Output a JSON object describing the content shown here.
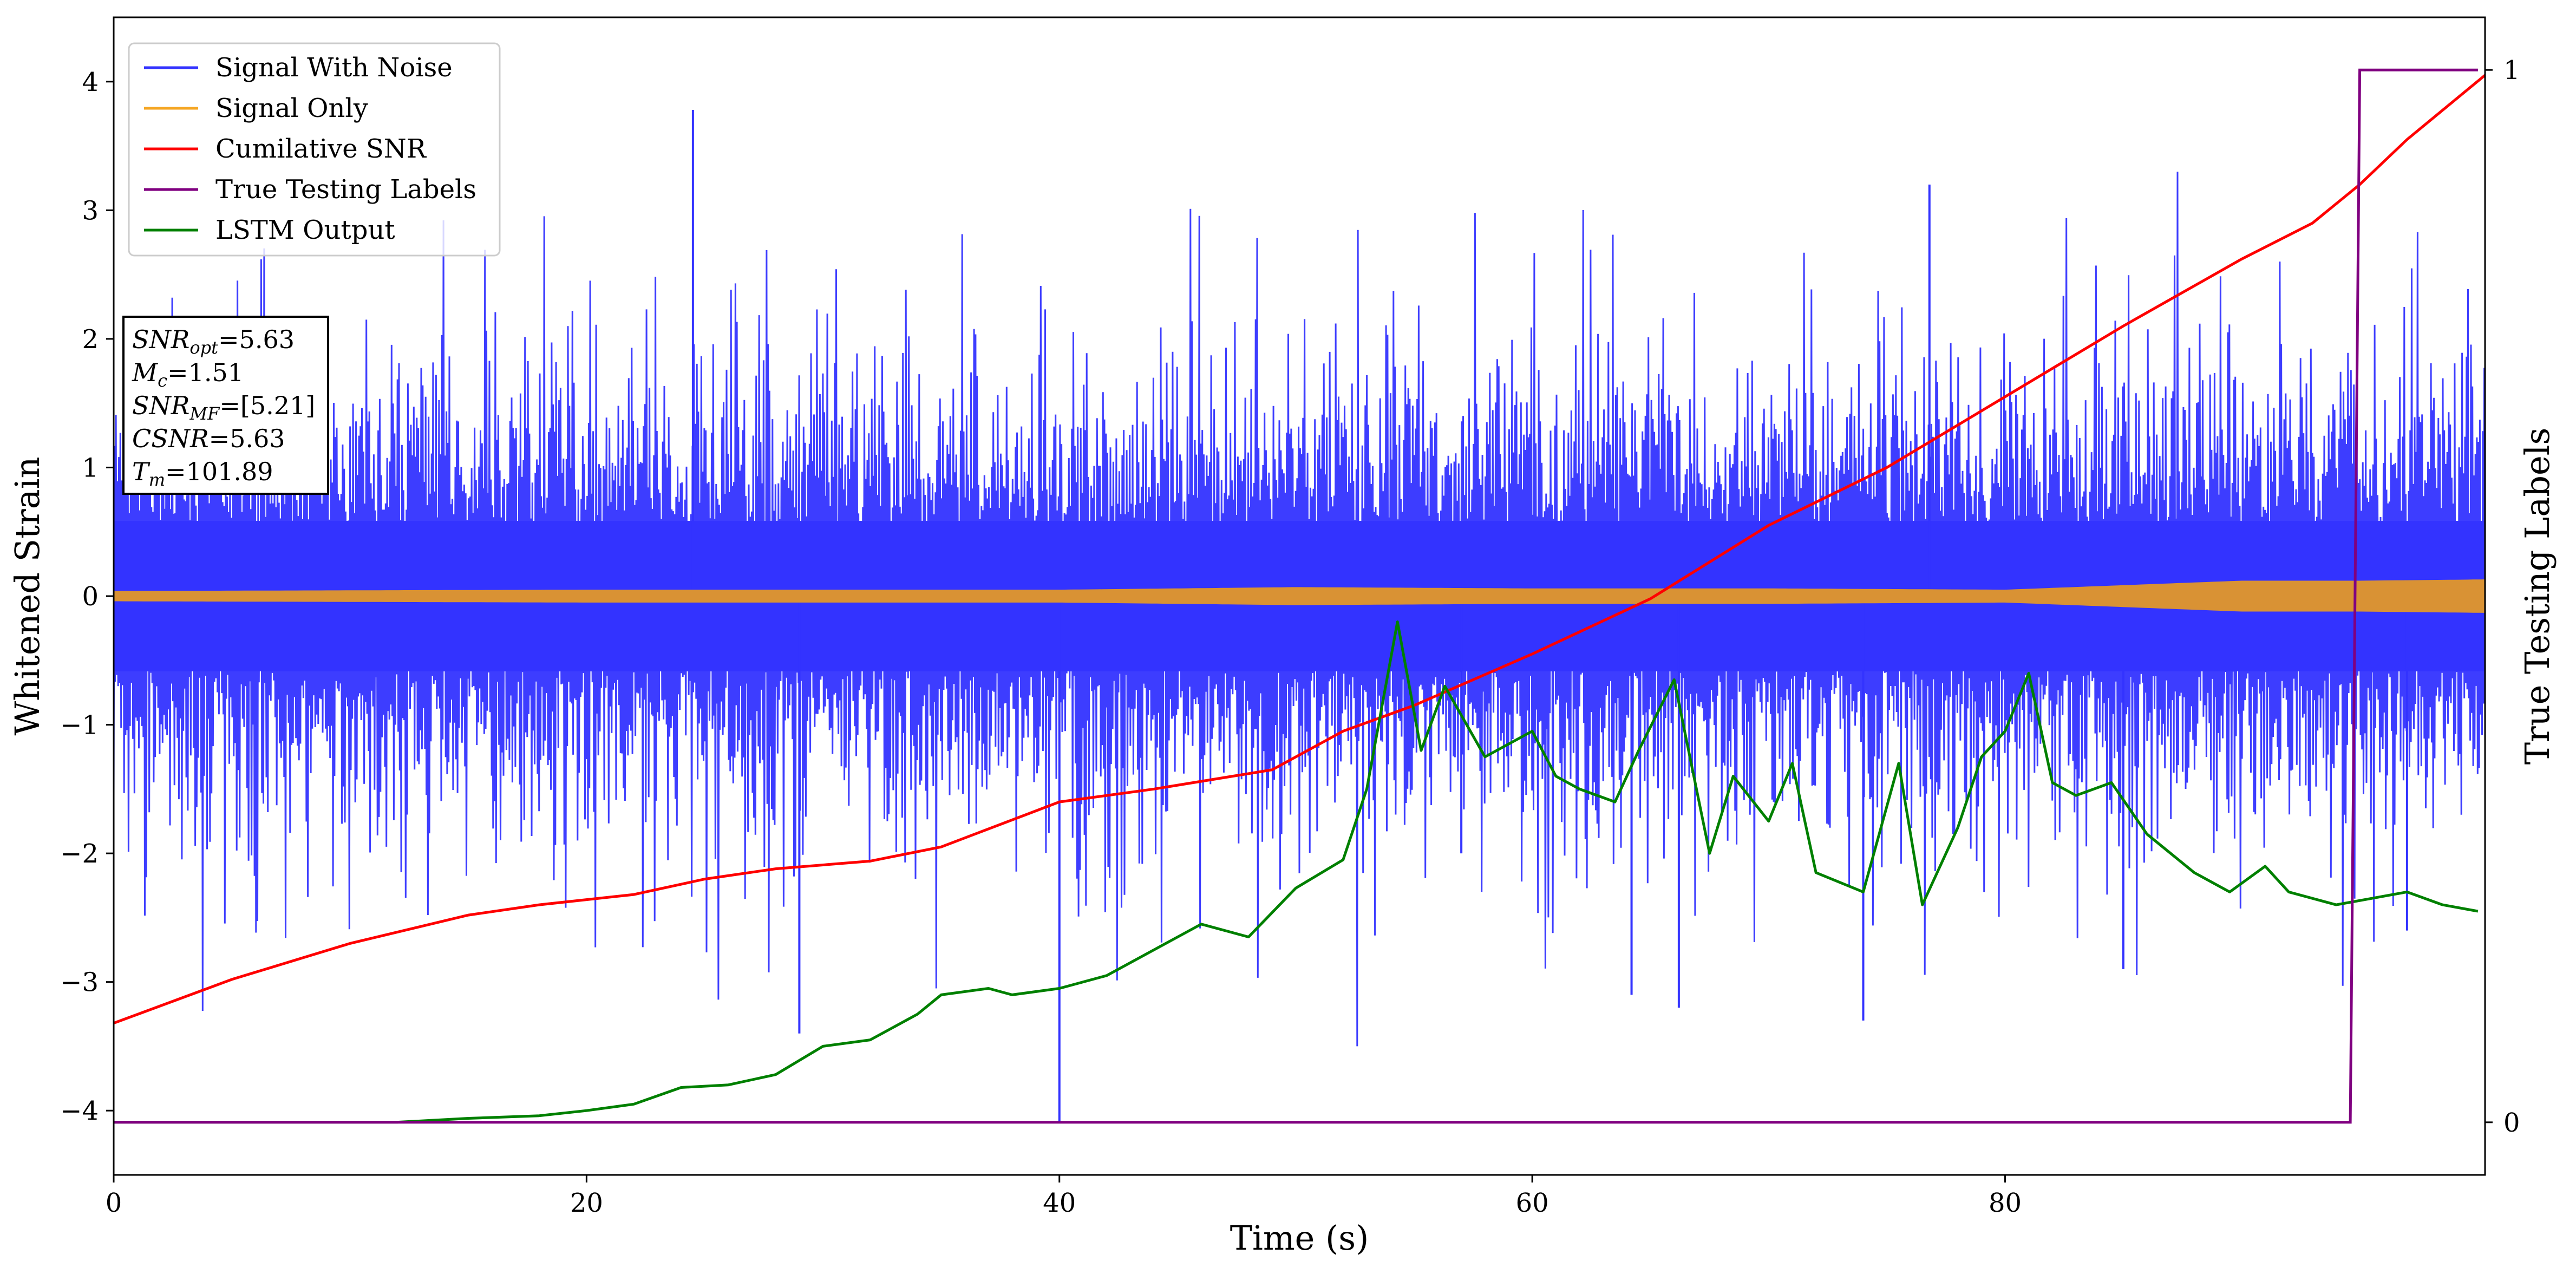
{
  "chart_data": {
    "type": "line",
    "xlabel": "Time (s)",
    "ylabel": "Whitened Strain",
    "y2label": "True Testing Labels",
    "xlim": [
      0,
      100.3
    ],
    "ylim": [
      -4.5,
      4.5
    ],
    "y2lim": [
      -0.05,
      1.05
    ],
    "xticks": [
      0,
      20,
      40,
      60,
      80
    ],
    "yticks": [
      -4,
      -3,
      -2,
      -1,
      0,
      1,
      2,
      3,
      4
    ],
    "y2ticks": [
      0,
      1
    ],
    "grid": false,
    "legend_position": "top-left",
    "colors": {
      "signal_with_noise": "#3333ff",
      "signal_only": "#f5a623",
      "signal_only_overlap": "#d99234",
      "cumulative_snr": "#ff0000",
      "true_labels": "#800080",
      "lstm_output": "#008000"
    },
    "series": [
      {
        "name": "Signal With Noise",
        "key": "signal_with_noise",
        "axis": "left",
        "noise_envelope": {
          "core_amplitude": 1.3,
          "max_amplitude": 3.8,
          "min_amplitude": -4.1,
          "x_range": [
            0,
            100.3
          ]
        }
      },
      {
        "name": "Signal Only",
        "key": "signal_only",
        "axis": "left",
        "envelope": {
          "x": [
            0,
            20,
            40,
            50,
            60,
            70,
            80,
            90,
            95,
            100.3
          ],
          "half_width": [
            0.04,
            0.05,
            0.05,
            0.07,
            0.06,
            0.06,
            0.05,
            0.12,
            0.12,
            0.13
          ]
        }
      },
      {
        "name": "Cumilative SNR",
        "key": "cumulative_snr",
        "axis": "left",
        "x": [
          0,
          5,
          10,
          15,
          18,
          22,
          25,
          28,
          32,
          35,
          40,
          44,
          49,
          52,
          55,
          60,
          65,
          70,
          75,
          80,
          85,
          90,
          93,
          95,
          97,
          100.3
        ],
        "y": [
          -3.32,
          -2.98,
          -2.7,
          -2.48,
          -2.4,
          -2.32,
          -2.2,
          -2.12,
          -2.06,
          -1.95,
          -1.6,
          -1.5,
          -1.35,
          -1.05,
          -0.85,
          -0.45,
          -0.02,
          0.55,
          1.0,
          1.55,
          2.1,
          2.62,
          2.9,
          3.2,
          3.55,
          4.05
        ]
      },
      {
        "name": "True Testing Labels",
        "key": "true_labels",
        "axis": "right",
        "x": [
          0,
          94.6,
          95.0,
          100.0
        ],
        "y": [
          0,
          0,
          1,
          1
        ]
      },
      {
        "name": "LSTM Output",
        "key": "lstm_output",
        "axis": "left",
        "x": [
          0,
          12,
          15,
          18,
          20,
          22,
          24,
          26,
          28,
          30,
          32,
          34,
          35,
          37,
          38,
          40,
          42,
          44,
          46,
          48,
          50,
          52,
          53,
          54.3,
          55.3,
          56.3,
          58,
          60,
          61,
          62,
          63.5,
          64.5,
          66,
          67.5,
          68.5,
          70,
          71,
          72,
          74,
          75.5,
          76.5,
          78,
          79,
          80,
          81,
          82,
          83,
          84.5,
          86,
          88,
          89.5,
          91,
          92,
          94,
          95.5,
          97,
          98.5,
          100
        ],
        "y": [
          -4.09,
          -4.09,
          -4.06,
          -4.04,
          -4.0,
          -3.95,
          -3.82,
          -3.8,
          -3.72,
          -3.5,
          -3.45,
          -3.25,
          -3.1,
          -3.05,
          -3.1,
          -3.05,
          -2.95,
          -2.75,
          -2.55,
          -2.65,
          -2.27,
          -2.05,
          -1.5,
          -0.2,
          -1.2,
          -0.7,
          -1.25,
          -1.05,
          -1.4,
          -1.5,
          -1.6,
          -1.2,
          -0.65,
          -2.0,
          -1.4,
          -1.75,
          -1.3,
          -2.15,
          -2.3,
          -1.3,
          -2.4,
          -1.8,
          -1.25,
          -1.05,
          -0.6,
          -1.45,
          -1.55,
          -1.45,
          -1.85,
          -2.15,
          -2.3,
          -2.1,
          -2.3,
          -2.4,
          -2.35,
          -2.3,
          -2.4,
          -2.45
        ]
      }
    ],
    "annotation_lines": [
      {
        "label": "SNR",
        "sub": "opt",
        "value": "=5.63"
      },
      {
        "label": "M",
        "sub": "c",
        "value": "=1.51"
      },
      {
        "label": "SNR",
        "sub": "MF",
        "value": "=[5.21]"
      },
      {
        "label": "CSNR",
        "sub": "",
        "value": "=5.63"
      },
      {
        "label": "T",
        "sub": "m",
        "value": "=101.89"
      }
    ]
  }
}
